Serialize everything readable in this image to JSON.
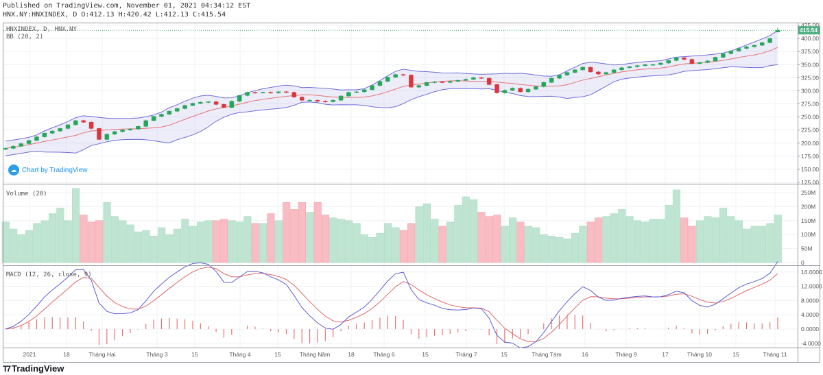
{
  "header": {
    "published": "Published on TradingView.com, November 01, 2021 04:34:12 EST",
    "ohlc": "HNX.NY:HNXINDEX, D O:412.13 H:420.42 L:412.13 C:415.54"
  },
  "panes": {
    "price_title": "HNXINDEX, D, HNX.NY",
    "bb_title": "BB (20, 2)",
    "volume_title": "Volume (20)",
    "macd_title": "MACD (12, 26, close, 9)"
  },
  "watermark": "Chart by TradingView",
  "footer_logo": "TradingView",
  "colors": {
    "up": "#26a65b",
    "down": "#d9363e",
    "vol_up": "#bfe5d2",
    "vol_down": "#f8bcc2",
    "bb_band": "#6c6cd9",
    "bb_basis": "#e57373",
    "macd": "#5b5bd6",
    "signal": "#e06666",
    "hist": "#e57373",
    "last_price": "#4caf7d"
  },
  "chart_data": [
    {
      "type": "candlestick",
      "title": "HNXINDEX, D, HNX.NY",
      "indicator": "BB (20, 2)",
      "ylim": [
        125,
        425
      ],
      "y_ticks": [
        "425.00",
        "400.00",
        "375.00",
        "350.00",
        "325.00",
        "300.00",
        "275.00",
        "250.00",
        "225.00",
        "200.00",
        "175.00",
        "150.00",
        "125.00"
      ],
      "last": {
        "open": 412.13,
        "high": 420.42,
        "low": 412.13,
        "close": 415.54,
        "label": "415.54"
      },
      "closes": [
        190,
        194,
        199,
        205,
        212,
        219,
        223,
        228,
        235,
        243,
        240,
        228,
        207,
        217,
        222,
        225,
        227,
        232,
        243,
        251,
        255,
        261,
        266,
        272,
        276,
        278,
        279,
        274,
        268,
        280,
        291,
        297,
        296,
        297,
        296,
        298,
        297,
        288,
        282,
        282,
        280,
        279,
        282,
        290,
        297,
        298,
        302,
        310,
        318,
        326,
        331,
        330,
        307,
        310,
        316,
        317,
        316,
        318,
        320,
        322,
        325,
        324,
        312,
        296,
        301,
        305,
        298,
        303,
        308,
        316,
        324,
        330,
        335,
        340,
        345,
        336,
        332,
        335,
        340,
        344,
        346,
        348,
        350,
        350,
        353,
        358,
        363,
        360,
        352,
        354,
        357,
        364,
        371,
        376,
        381,
        384,
        387,
        392,
        400,
        415.54
      ]
    },
    {
      "type": "bar",
      "title": "Volume (20)",
      "ylim": [
        0,
        270
      ],
      "y_ticks": [
        "250M",
        "200M",
        "150M",
        "100M",
        "50M",
        "0"
      ],
      "values_millions": [
        145,
        120,
        100,
        115,
        140,
        150,
        175,
        195,
        150,
        265,
        170,
        145,
        150,
        215,
        165,
        150,
        135,
        110,
        115,
        95,
        125,
        100,
        120,
        155,
        130,
        145,
        150,
        150,
        155,
        150,
        145,
        165,
        140,
        140,
        175,
        150,
        215,
        190,
        215,
        180,
        215,
        170,
        160,
        155,
        150,
        140,
        100,
        90,
        105,
        140,
        125,
        115,
        140,
        200,
        210,
        155,
        130,
        145,
        205,
        235,
        225,
        180,
        165,
        170,
        130,
        160,
        145,
        130,
        125,
        100,
        95,
        90,
        85,
        105,
        130,
        145,
        160,
        165,
        175,
        190,
        165,
        150,
        145,
        155,
        155,
        205,
        260,
        160,
        130,
        150,
        165,
        160,
        195,
        165,
        150,
        120,
        130,
        130,
        140,
        170
      ]
    },
    {
      "type": "line",
      "title": "MACD (12, 26, close, 9)",
      "ylim": [
        -5,
        17
      ],
      "y_ticks": [
        "16.0000",
        "12.0000",
        "8.0000",
        "4.0000",
        "0.0000",
        "-4.0000"
      ],
      "series": [
        "MACD",
        "Signal",
        "Histogram"
      ]
    }
  ],
  "time_axis": [
    "2021",
    "18",
    "Tháng Hai",
    "Tháng 3",
    "15",
    "Tháng 4",
    "15",
    "Tháng Năm",
    "18",
    "Tháng 6",
    "15",
    "Tháng 7",
    "15",
    "Tháng Tám",
    "16",
    "Tháng 9",
    "17",
    "Tháng 10",
    "15",
    "Tháng 11"
  ]
}
